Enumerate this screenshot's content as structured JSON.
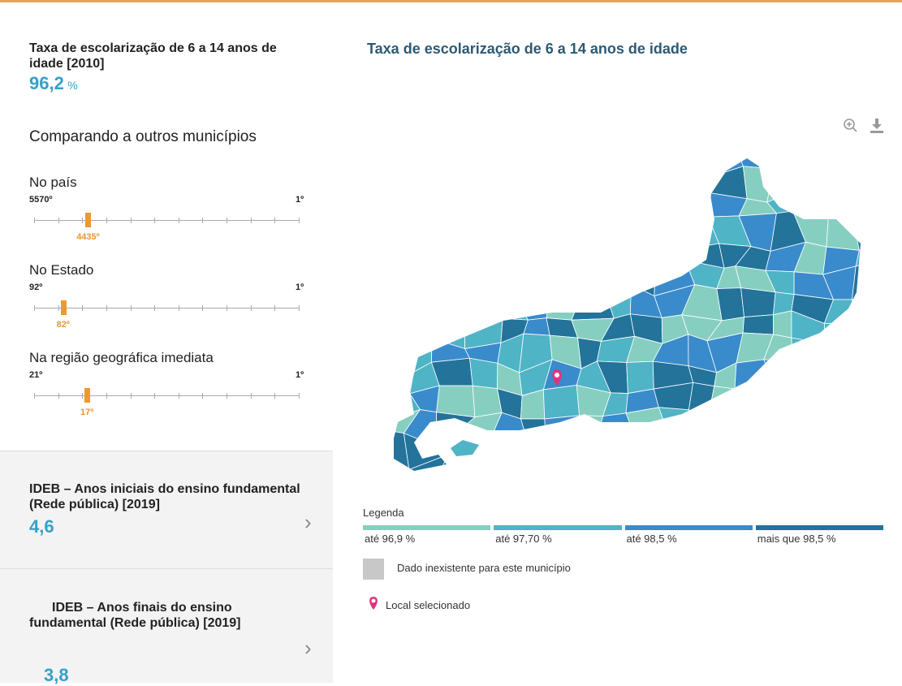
{
  "indicator": {
    "title": "Taxa de escolarização de 6 a 14 anos de idade [2010]",
    "value": "96,2",
    "unit": "%"
  },
  "compare_title": "Comparando a outros municípios",
  "rankings": [
    {
      "label": "No país",
      "lowest": {
        "value": 5570,
        "label": "5570º"
      },
      "highest": {
        "value": 1,
        "label": "1º"
      },
      "position": {
        "value": 4435,
        "label": "4435º"
      }
    },
    {
      "label": "No Estado",
      "lowest": {
        "value": 92,
        "label": "92º"
      },
      "highest": {
        "value": 1,
        "label": "1º"
      },
      "position": {
        "value": 82,
        "label": "82º"
      }
    },
    {
      "label": "Na região geográfica imediata",
      "lowest": {
        "value": 21,
        "label": "21º"
      },
      "highest": {
        "value": 1,
        "label": "1º"
      },
      "position": {
        "value": 17,
        "label": "17º"
      }
    }
  ],
  "cards": [
    {
      "title": "IDEB – Anos iniciais do ensino fundamental (Rede pública) [2019]",
      "value": "4,6"
    },
    {
      "title": "IDEB – Anos finais do ensino fundamental (Rede pública) [2019]",
      "value": "3,8"
    }
  ],
  "map": {
    "title": "Taxa de escolarização de 6 a 14 anos de idade",
    "legend_title": "Legenda",
    "legend": [
      {
        "label": "até 96,9 %",
        "color": "#86cfc0"
      },
      {
        "label": "até 97,70 %",
        "color": "#4fb4c6"
      },
      {
        "label": "até 98,5 %",
        "color": "#3a8bcb"
      },
      {
        "label": "mais que 98,5 %",
        "color": "#23739b"
      }
    ],
    "no_data": "Dado inexistente para este município",
    "selected": "Local selecionado"
  }
}
